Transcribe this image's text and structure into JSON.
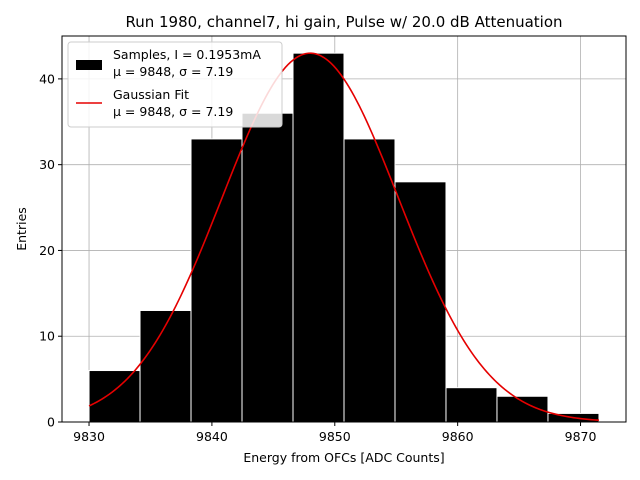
{
  "chart_data": {
    "type": "bar",
    "title": "Run 1980, channel7, hi gain, Pulse w/ 20.0 dB Attenuation",
    "xlabel": "Energy from OFCs [ADC Counts]",
    "ylabel": "Entries",
    "xlim": [
      9827.8,
      9873.7
    ],
    "ylim": [
      0,
      45
    ],
    "grid": true,
    "xticks": [
      9830,
      9840,
      9850,
      9860,
      9870
    ],
    "yticks": [
      0,
      10,
      20,
      30,
      40
    ],
    "bins": [
      {
        "x0": 9830.0,
        "x1": 9834.15,
        "value": 6
      },
      {
        "x0": 9834.15,
        "x1": 9838.3,
        "value": 13
      },
      {
        "x0": 9838.3,
        "x1": 9842.45,
        "value": 33
      },
      {
        "x0": 9842.45,
        "x1": 9846.6,
        "value": 36
      },
      {
        "x0": 9846.6,
        "x1": 9850.75,
        "value": 43
      },
      {
        "x0": 9850.75,
        "x1": 9854.9,
        "value": 33
      },
      {
        "x0": 9854.9,
        "x1": 9859.05,
        "value": 28
      },
      {
        "x0": 9859.05,
        "x1": 9863.2,
        "value": 4
      },
      {
        "x0": 9863.2,
        "x1": 9867.35,
        "value": 3
      },
      {
        "x0": 9867.35,
        "x1": 9871.5,
        "value": 1
      }
    ],
    "fit": {
      "type": "gaussian",
      "mu": 9848,
      "sigma": 7.19,
      "amplitude": 43,
      "x_range": [
        9830,
        9871.5
      ]
    },
    "legend": {
      "position": "top-left",
      "entries": [
        {
          "name": "samples",
          "line1": "Samples, I = 0.1953mA",
          "line2": "μ = 9848, σ = 7.19"
        },
        {
          "name": "fit",
          "line1": "Gaussian Fit",
          "line2": "μ = 9848, σ = 7.19"
        }
      ]
    },
    "colors": {
      "bar": "#000000",
      "bar_edge": "#ffffff",
      "fit_line": "#e50000",
      "grid": "#b0b0b0"
    }
  }
}
